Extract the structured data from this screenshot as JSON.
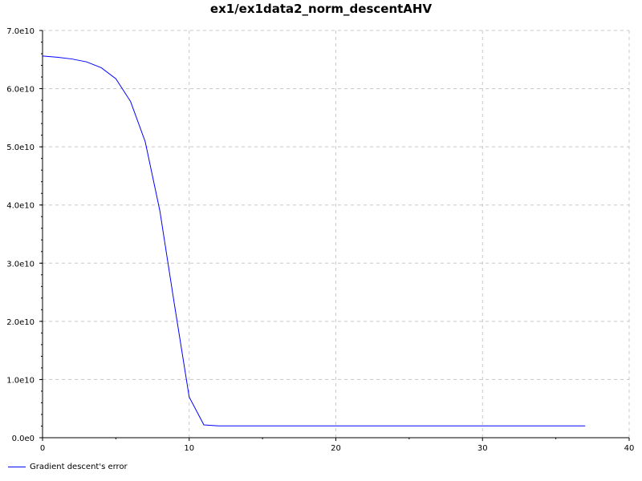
{
  "chart_data": {
    "type": "line",
    "title": "ex1/ex1data2_norm_descentAHV",
    "xlabel": "",
    "ylabel": "",
    "xlim": [
      0,
      40
    ],
    "ylim": [
      0,
      70000000000
    ],
    "x_ticks": [
      0,
      10,
      20,
      30,
      40
    ],
    "x_tick_labels": [
      "0",
      "10",
      "20",
      "30",
      "40"
    ],
    "y_ticks": [
      0,
      10000000000,
      20000000000,
      30000000000,
      40000000000,
      50000000000,
      60000000000,
      70000000000
    ],
    "y_tick_labels": [
      "0.0e0",
      "1.0e10",
      "2.0e10",
      "3.0e10",
      "4.0e10",
      "5.0e10",
      "6.0e10",
      "7.0e10"
    ],
    "grid": true,
    "legend_position": "bottom-left",
    "series": [
      {
        "name": "Gradient descent's error",
        "color": "#0000ff",
        "x": [
          0,
          1,
          2,
          3,
          4,
          5,
          6,
          7,
          8,
          9,
          10,
          11,
          12,
          13,
          14,
          15,
          16,
          17,
          18,
          19,
          20,
          21,
          22,
          23,
          24,
          25,
          26,
          27,
          28,
          29,
          30,
          31,
          32,
          33,
          34,
          35,
          36,
          37
        ],
        "y": [
          65600000000,
          65400000000,
          65100000000,
          64600000000,
          63600000000,
          61700000000,
          57800000000,
          50900000000,
          39000000000,
          22800000000,
          7000000000,
          2200000000,
          2030000000,
          2030000000,
          2030000000,
          2030000000,
          2030000000,
          2030000000,
          2030000000,
          2030000000,
          2030000000,
          2030000000,
          2030000000,
          2030000000,
          2030000000,
          2030000000,
          2030000000,
          2030000000,
          2030000000,
          2030000000,
          2030000000,
          2030000000,
          2030000000,
          2030000000,
          2030000000,
          2030000000,
          2030000000,
          2030000000
        ]
      }
    ]
  }
}
